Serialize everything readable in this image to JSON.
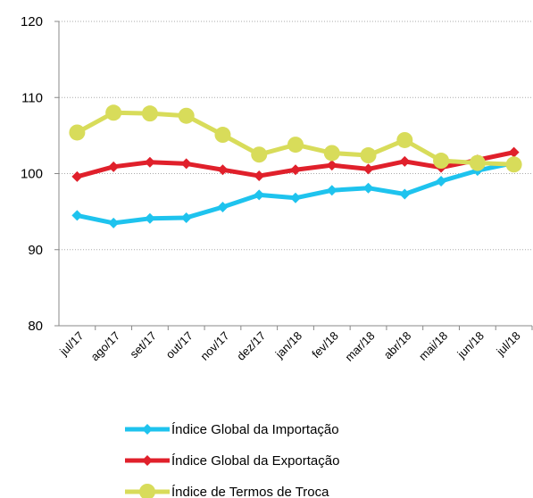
{
  "chart_data": {
    "type": "line",
    "categories": [
      "jul/17",
      "ago/17",
      "set/17",
      "out/17",
      "nov/17",
      "dez/17",
      "jan/18",
      "fev/18",
      "mar/18",
      "abr/18",
      "mai/18",
      "jun/18",
      "jul/18"
    ],
    "series": [
      {
        "name": "Índice Global da Importação",
        "color": "#1ec3ee",
        "marker": "diamond",
        "values": [
          94.5,
          93.5,
          94.1,
          94.2,
          95.6,
          97.2,
          96.8,
          97.8,
          98.1,
          97.3,
          99.0,
          100.4,
          101.4
        ]
      },
      {
        "name": "Índice Global da Exportação",
        "color": "#e0202b",
        "marker": "diamond",
        "values": [
          99.6,
          100.9,
          101.5,
          101.3,
          100.5,
          99.7,
          100.5,
          101.1,
          100.6,
          101.6,
          100.8,
          101.8,
          102.8
        ]
      },
      {
        "name": "Índice de Termos de Troca",
        "color": "#d8dc5a",
        "marker": "circle",
        "values": [
          105.4,
          108.0,
          107.9,
          107.6,
          105.1,
          102.5,
          103.8,
          102.7,
          102.4,
          104.4,
          101.7,
          101.4,
          101.2
        ]
      }
    ],
    "ylim": [
      80,
      120
    ],
    "yticks": [
      80,
      90,
      100,
      110,
      120
    ],
    "grid": true
  }
}
